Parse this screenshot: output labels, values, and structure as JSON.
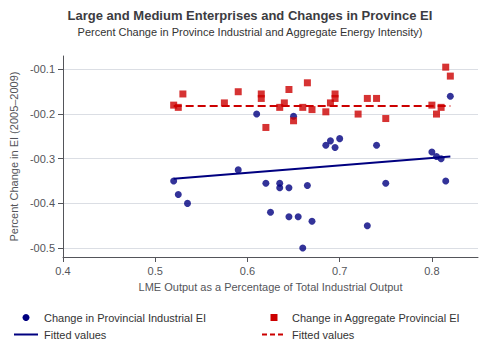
{
  "chart_data": {
    "type": "scatter",
    "title": "Large and Medium Enterprises and Changes in Province EI",
    "subtitle": "Percent Change in Province Industrial and Aggregate Energy Intensity)",
    "xlabel": "LME Output as a Percentage of Total Industrial Output",
    "ylabel": "Percent Change in EI (2005–2009)",
    "xlim": [
      0.4,
      0.85
    ],
    "ylim": [
      -0.52,
      -0.07
    ],
    "xticks": [
      0.4,
      0.5,
      0.6,
      0.7,
      0.8
    ],
    "yticks": [
      {
        "value": -0.1,
        "label": "-00.1"
      },
      {
        "value": -0.2,
        "label": "-00.2"
      },
      {
        "value": -0.3,
        "label": "-00.3"
      },
      {
        "value": -0.4,
        "label": "-00.4"
      },
      {
        "value": -0.5,
        "label": "-00.5"
      }
    ],
    "grid": true,
    "legend": "bottom",
    "series": [
      {
        "name": "Change in Provincial Industrial EI",
        "type": "scatter",
        "marker": "circle",
        "color": "#000080",
        "x": [
          0.52,
          0.525,
          0.535,
          0.59,
          0.61,
          0.62,
          0.625,
          0.635,
          0.635,
          0.645,
          0.645,
          0.65,
          0.655,
          0.66,
          0.665,
          0.67,
          0.685,
          0.69,
          0.695,
          0.7,
          0.73,
          0.74,
          0.75,
          0.8,
          0.805,
          0.81,
          0.815,
          0.82
        ],
        "values": [
          -0.35,
          -0.38,
          -0.4,
          -0.325,
          -0.2,
          -0.355,
          -0.42,
          -0.355,
          -0.365,
          -0.43,
          -0.365,
          -0.205,
          -0.43,
          -0.5,
          -0.36,
          -0.44,
          -0.27,
          -0.26,
          -0.275,
          -0.255,
          -0.45,
          -0.27,
          -0.355,
          -0.285,
          -0.295,
          -0.3,
          -0.35,
          -0.16
        ]
      },
      {
        "name": "Fitted values",
        "type": "line",
        "line_style": "solid",
        "color": "#000080",
        "x": [
          0.52,
          0.82
        ],
        "values": [
          -0.345,
          -0.295
        ]
      },
      {
        "name": "Change in Aggregate Provincial EI",
        "type": "scatter",
        "marker": "square",
        "color": "#cc0000",
        "x": [
          0.52,
          0.525,
          0.53,
          0.575,
          0.59,
          0.615,
          0.615,
          0.62,
          0.635,
          0.64,
          0.645,
          0.65,
          0.66,
          0.665,
          0.67,
          0.685,
          0.69,
          0.695,
          0.695,
          0.72,
          0.73,
          0.74,
          0.75,
          0.8,
          0.805,
          0.81,
          0.815,
          0.82
        ],
        "values": [
          -0.18,
          -0.185,
          -0.155,
          -0.175,
          -0.15,
          -0.155,
          -0.165,
          -0.23,
          -0.185,
          -0.175,
          -0.145,
          -0.215,
          -0.185,
          -0.13,
          -0.19,
          -0.195,
          -0.175,
          -0.155,
          -0.165,
          -0.2,
          -0.165,
          -0.165,
          -0.21,
          -0.18,
          -0.2,
          -0.185,
          -0.095,
          -0.115
        ]
      },
      {
        "name": "Fitted values",
        "type": "line",
        "line_style": "dashed",
        "color": "#cc0000",
        "x": [
          0.52,
          0.82
        ],
        "values": [
          -0.182,
          -0.182
        ]
      }
    ]
  }
}
